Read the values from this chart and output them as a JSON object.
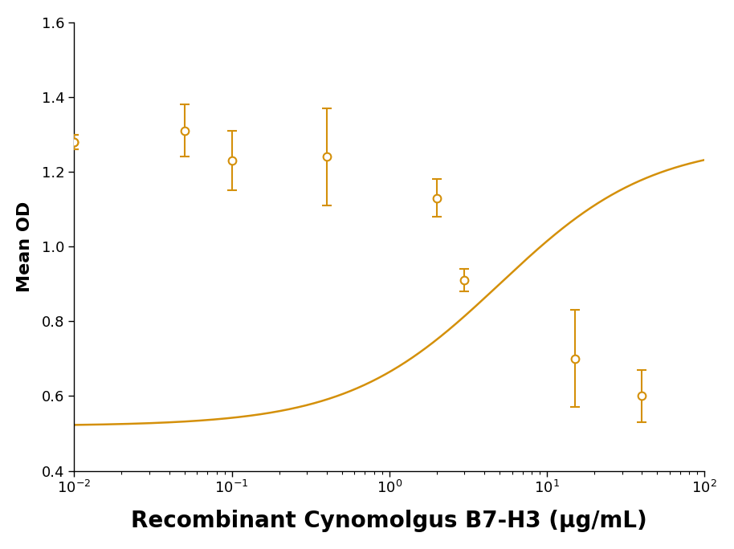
{
  "x_data": [
    0.01,
    0.01,
    0.05,
    0.1,
    0.4,
    2.0,
    3.0,
    15.0,
    40.0
  ],
  "y_data": [
    1.28,
    1.28,
    1.31,
    1.23,
    1.24,
    1.13,
    0.91,
    0.7,
    0.6
  ],
  "y_err": [
    0.02,
    0.02,
    0.07,
    0.08,
    0.13,
    0.05,
    0.03,
    0.13,
    0.07
  ],
  "color": "#D4900A",
  "xlabel": "Recombinant Cynomolgus B7-H3 (μg/mL)",
  "ylabel": "Mean OD",
  "ylim": [
    0.4,
    1.6
  ],
  "yticks": [
    0.4,
    0.6,
    0.8,
    1.0,
    1.2,
    1.4,
    1.6
  ],
  "marker_size": 7,
  "line_width": 1.8,
  "xlabel_fontsize": 20,
  "ylabel_fontsize": 16,
  "tick_fontsize": 13,
  "xlabel_fontweight": "bold"
}
